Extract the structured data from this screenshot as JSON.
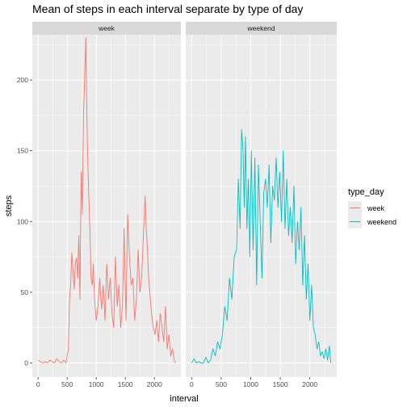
{
  "chart_data": {
    "type": "line",
    "title": "Mean of steps in each interval separate by type of day",
    "xlabel": "interval",
    "ylabel": "steps",
    "xlim": [
      -100,
      2455
    ],
    "ylim": [
      -10,
      232
    ],
    "x_ticks": [
      0,
      500,
      1000,
      1500,
      2000
    ],
    "y_ticks": [
      0,
      50,
      100,
      150,
      200
    ],
    "grid": true,
    "legend": {
      "title": "type_day",
      "position": "right"
    },
    "facets": [
      "week",
      "weekend"
    ],
    "series": [
      {
        "name": "week",
        "facet": "week",
        "color": "#F8766D",
        "x": [
          0,
          40,
          80,
          120,
          160,
          200,
          240,
          280,
          320,
          360,
          400,
          440,
          480,
          500,
          520,
          540,
          560,
          580,
          600,
          620,
          640,
          660,
          680,
          700,
          720,
          740,
          760,
          780,
          800,
          820,
          835,
          850,
          870,
          890,
          910,
          930,
          950,
          970,
          1000,
          1030,
          1060,
          1090,
          1120,
          1150,
          1180,
          1210,
          1240,
          1270,
          1300,
          1330,
          1360,
          1390,
          1420,
          1450,
          1480,
          1510,
          1540,
          1570,
          1600,
          1630,
          1660,
          1690,
          1720,
          1750,
          1780,
          1810,
          1840,
          1860,
          1880,
          1900,
          1920,
          1950,
          1980,
          2010,
          2040,
          2070,
          2100,
          2130,
          2160,
          2190,
          2220,
          2250,
          2280,
          2310,
          2340,
          2355
        ],
        "y": [
          2,
          1,
          0,
          1,
          0,
          2,
          1,
          0,
          3,
          1,
          0,
          2,
          0,
          5,
          10,
          45,
          55,
          78,
          65,
          52,
          70,
          74,
          60,
          90,
          45,
          135,
          105,
          175,
          200,
          230,
          185,
          150,
          120,
          95,
          60,
          55,
          70,
          45,
          30,
          40,
          60,
          38,
          55,
          30,
          70,
          45,
          60,
          35,
          25,
          75,
          40,
          55,
          25,
          40,
          95,
          30,
          105,
          75,
          55,
          60,
          30,
          45,
          80,
          50,
          60,
          90,
          118,
          95,
          80,
          60,
          50,
          35,
          25,
          20,
          30,
          15,
          35,
          25,
          15,
          40,
          10,
          20,
          5,
          10,
          2,
          0
        ]
      },
      {
        "name": "weekend",
        "facet": "weekend",
        "color": "#00BFC4",
        "x": [
          0,
          40,
          80,
          120,
          160,
          200,
          240,
          280,
          320,
          360,
          400,
          440,
          480,
          520,
          560,
          600,
          640,
          680,
          720,
          760,
          790,
          820,
          845,
          870,
          890,
          910,
          935,
          960,
          985,
          1010,
          1040,
          1070,
          1100,
          1130,
          1160,
          1190,
          1220,
          1250,
          1280,
          1310,
          1340,
          1370,
          1400,
          1430,
          1460,
          1490,
          1520,
          1550,
          1580,
          1610,
          1640,
          1670,
          1700,
          1730,
          1760,
          1790,
          1820,
          1850,
          1880,
          1910,
          1940,
          1970,
          2000,
          2030,
          2060,
          2090,
          2120,
          2150,
          2180,
          2210,
          2240,
          2270,
          2300,
          2330,
          2355
        ],
        "y": [
          0,
          3,
          0,
          1,
          0,
          0,
          4,
          0,
          2,
          10,
          5,
          15,
          10,
          20,
          40,
          30,
          60,
          45,
          75,
          80,
          130,
          95,
          165,
          150,
          110,
          160,
          95,
          130,
          75,
          150,
          80,
          145,
          55,
          140,
          100,
          60,
          120,
          130,
          110,
          140,
          85,
          125,
          115,
          145,
          110,
          135,
          100,
          150,
          95,
          130,
          90,
          110,
          85,
          125,
          70,
          100,
          80,
          110,
          55,
          90,
          45,
          70,
          30,
          55,
          25,
          20,
          10,
          15,
          5,
          8,
          3,
          10,
          2,
          12,
          0
        ]
      }
    ]
  }
}
